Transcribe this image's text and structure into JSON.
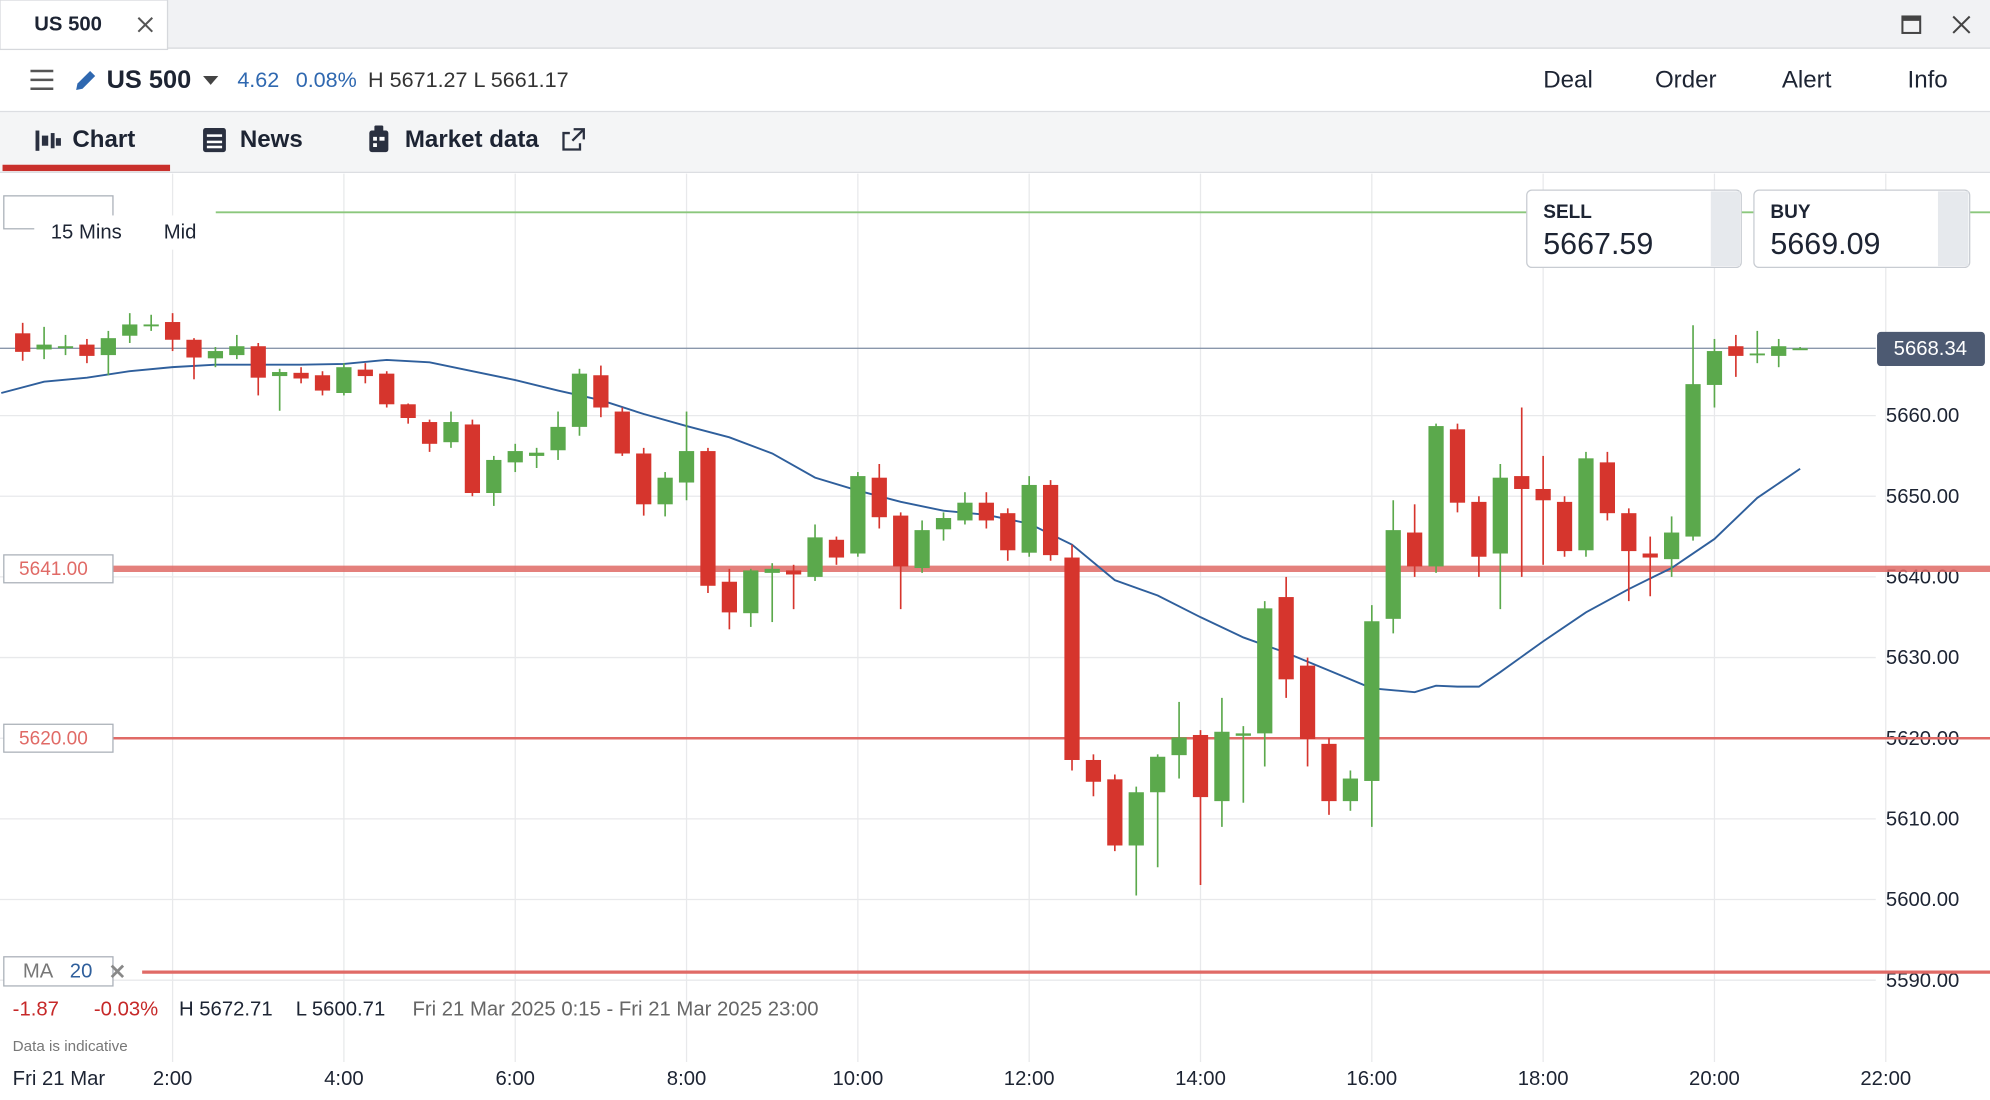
{
  "tab": {
    "title": "US 500"
  },
  "toolbar": {
    "instrument": "US 500",
    "change": "4.62",
    "change_pct": "0.08%",
    "high_low": "H 5671.27 L 5661.17",
    "actions": [
      "Deal",
      "Order",
      "Alert",
      "Info"
    ]
  },
  "subtabs": [
    "Chart",
    "News",
    "Market data"
  ],
  "quote": {
    "sell_label": "SELL",
    "sell_price": "5667.59",
    "buy_label": "BUY",
    "buy_price": "5669.09"
  },
  "settings": {
    "interval": "15 Mins",
    "price_type": "Mid"
  },
  "footer": {
    "change": "-1.87",
    "change_pct": "-0.03%",
    "high": "H 5672.71",
    "low": "L 5600.71",
    "range": "Fri 21 Mar 2025 0:15 - Fri 21 Mar 2025 23:00",
    "note": "Data is indicative",
    "date": "Fri 21 Mar"
  },
  "chart_data": {
    "type": "candlestick",
    "up_color": "#5ba94c",
    "down_color": "#d6352d",
    "xlim": [
      "0:00",
      "23:13"
    ],
    "ylim": [
      5587.4,
      5690
    ],
    "xticks": [
      "2:00",
      "4:00",
      "6:00",
      "8:00",
      "10:00",
      "12:00",
      "14:00",
      "16:00",
      "18:00",
      "20:00",
      "22:00"
    ],
    "yticks": [
      {
        "value": 5590,
        "label": "5590.00"
      },
      {
        "value": 5600,
        "label": "5600.00"
      },
      {
        "value": 5610,
        "label": "5610.00"
      },
      {
        "value": 5620,
        "label": "5620.00"
      },
      {
        "value": 5630,
        "label": "5630.00"
      },
      {
        "value": 5640,
        "label": "5640.00"
      },
      {
        "value": 5650,
        "label": "5650.00"
      },
      {
        "value": 5660,
        "label": "5660.00"
      }
    ],
    "grid": true,
    "current_price": 5668.34,
    "levels": [
      {
        "value": 5641,
        "label": "5641.00",
        "color": "#e06a66"
      },
      {
        "value": 5620,
        "label": "5620.00",
        "color": "#e06a66"
      },
      {
        "value": 5685.2,
        "color": "#8bc77c"
      },
      {
        "value": 5591,
        "color": "#e06a66"
      }
    ],
    "candles": {
      "x": [
        "0:15",
        "0:30",
        "0:45",
        "1:00",
        "1:15",
        "1:30",
        "1:45",
        "2:00",
        "2:15",
        "2:30",
        "2:45",
        "3:00",
        "3:15",
        "3:30",
        "3:45",
        "4:00",
        "4:15",
        "4:30",
        "4:45",
        "5:00",
        "5:15",
        "5:30",
        "5:45",
        "6:00",
        "6:15",
        "6:30",
        "6:45",
        "7:00",
        "7:15",
        "7:30",
        "7:45",
        "8:00",
        "8:15",
        "8:30",
        "8:45",
        "9:00",
        "9:15",
        "9:30",
        "9:45",
        "10:00",
        "10:15",
        "10:30",
        "10:45",
        "11:00",
        "11:15",
        "11:30",
        "11:45",
        "12:00",
        "12:15",
        "12:30",
        "12:45",
        "13:00",
        "13:15",
        "13:30",
        "13:45",
        "14:00",
        "14:15",
        "14:30",
        "14:45",
        "15:00",
        "15:15",
        "15:30",
        "15:45",
        "16:00",
        "16:15",
        "16:30",
        "16:45",
        "17:00",
        "17:15",
        "17:30",
        "17:45",
        "18:00",
        "18:15",
        "18:30",
        "18:45",
        "19:00",
        "19:15",
        "19:30",
        "19:45",
        "20:00",
        "20:15",
        "20:30",
        "20:45",
        "21:00"
      ],
      "open": [
        5670.2,
        5668.2,
        5668.5,
        5668.8,
        5667.5,
        5669.9,
        5671.1,
        5671.6,
        5669.4,
        5667.1,
        5667.5,
        5668.6,
        5664.9,
        5665.3,
        5665.0,
        5662.8,
        5665.7,
        5665.2,
        5661.4,
        5659.2,
        5656.7,
        5658.9,
        5650.4,
        5654.2,
        5655.0,
        5655.7,
        5658.6,
        5665.0,
        5660.5,
        5655.3,
        5649.0,
        5651.7,
        5655.6,
        5639.4,
        5635.5,
        5640.5,
        5640.8,
        5640.0,
        5644.6,
        5642.9,
        5652.3,
        5647.6,
        5641.1,
        5645.9,
        5647.0,
        5649.2,
        5647.9,
        5643.0,
        5651.4,
        5642.4,
        5617.3,
        5614.9,
        5606.7,
        5613.3,
        5617.9,
        5620.4,
        5612.2,
        5620.3,
        5620.6,
        5637.5,
        5629.0,
        5619.3,
        5612.2,
        5614.7,
        5634.8,
        5645.5,
        5641.3,
        5658.3,
        5649.3,
        5642.9,
        5652.5,
        5650.9,
        5649.3,
        5643.3,
        5654.2,
        5647.9,
        5642.9,
        5642.2,
        5645.0,
        5663.8,
        5668.6,
        5667.7,
        5667.4,
        5668.3
      ],
      "high": [
        5671.5,
        5671.0,
        5670.0,
        5669.5,
        5670.5,
        5672.7,
        5672.5,
        5672.7,
        5669.6,
        5668.5,
        5670.0,
        5669.0,
        5665.8,
        5666.0,
        5665.5,
        5666.5,
        5666.5,
        5665.5,
        5661.5,
        5659.5,
        5660.5,
        5659.5,
        5655.0,
        5656.5,
        5656.0,
        5660.5,
        5665.8,
        5666.2,
        5661.0,
        5656.0,
        5653.0,
        5660.5,
        5656.0,
        5641.0,
        5641.0,
        5641.7,
        5641.5,
        5646.5,
        5645.0,
        5653.0,
        5654.0,
        5648.0,
        5647.0,
        5648.0,
        5650.5,
        5650.5,
        5648.5,
        5652.5,
        5652.0,
        5644.0,
        5618.0,
        5615.5,
        5614.0,
        5618.0,
        5624.5,
        5621.0,
        5625.0,
        5621.5,
        5637.0,
        5640.0,
        5630.0,
        5620.0,
        5616.0,
        5636.5,
        5649.5,
        5649.0,
        5659.0,
        5659.0,
        5650.0,
        5654.0,
        5661.0,
        5655.0,
        5650.0,
        5655.5,
        5655.5,
        5648.5,
        5645.0,
        5647.5,
        5671.2,
        5669.5,
        5670.0,
        5670.5,
        5669.5,
        5668.5
      ],
      "low": [
        5666.8,
        5667.0,
        5667.5,
        5666.5,
        5665.0,
        5669.0,
        5670.5,
        5668.0,
        5664.5,
        5666.0,
        5667.0,
        5662.5,
        5660.6,
        5664.0,
        5662.5,
        5662.5,
        5664.0,
        5661.0,
        5659.0,
        5655.5,
        5656.0,
        5650.0,
        5648.8,
        5653.0,
        5653.5,
        5654.5,
        5657.5,
        5659.8,
        5655.0,
        5647.6,
        5647.5,
        5649.5,
        5638.0,
        5633.5,
        5633.8,
        5634.4,
        5636.0,
        5639.5,
        5641.5,
        5642.5,
        5646.0,
        5636.0,
        5640.5,
        5644.5,
        5646.5,
        5646.0,
        5642.0,
        5642.5,
        5642.0,
        5616.0,
        5612.8,
        5606.0,
        5600.5,
        5604.0,
        5615.0,
        5601.8,
        5609.0,
        5612.0,
        5616.5,
        5625.0,
        5616.5,
        5610.5,
        5611.0,
        5609.0,
        5633.0,
        5640.0,
        5640.5,
        5648.0,
        5640.0,
        5636.0,
        5640.0,
        5641.5,
        5642.5,
        5642.5,
        5647.0,
        5637.0,
        5637.6,
        5640.0,
        5644.5,
        5661.0,
        5664.8,
        5666.5,
        5666.0,
        5668.2
      ],
      "close": [
        5667.9,
        5668.8,
        5668.6,
        5667.4,
        5669.6,
        5671.3,
        5671.3,
        5669.4,
        5667.2,
        5668.0,
        5668.6,
        5664.7,
        5665.4,
        5664.6,
        5663.1,
        5666.0,
        5664.9,
        5661.4,
        5659.7,
        5656.5,
        5659.2,
        5650.4,
        5654.5,
        5655.6,
        5655.4,
        5658.6,
        5665.2,
        5661.0,
        5655.3,
        5649.0,
        5652.3,
        5655.6,
        5638.9,
        5635.6,
        5640.8,
        5641.0,
        5640.3,
        5644.9,
        5642.4,
        5652.5,
        5647.4,
        5641.3,
        5645.8,
        5647.3,
        5649.2,
        5647.0,
        5643.3,
        5651.4,
        5642.7,
        5617.3,
        5614.6,
        5606.7,
        5613.3,
        5617.7,
        5620.1,
        5612.7,
        5620.8,
        5620.6,
        5636.1,
        5627.3,
        5619.9,
        5612.2,
        5615.0,
        5634.5,
        5645.8,
        5641.3,
        5658.7,
        5649.2,
        5642.5,
        5652.3,
        5650.9,
        5649.5,
        5643.2,
        5654.7,
        5647.9,
        5643.2,
        5642.4,
        5645.5,
        5663.9,
        5668.0,
        5667.4,
        5667.7,
        5668.6,
        5668.34
      ]
    },
    "ma_line": {
      "name": "MA",
      "period": 20,
      "color": "#2f5f9c",
      "x": [
        "0:00",
        "0:30",
        "1:00",
        "1:30",
        "2:00",
        "2:30",
        "3:00",
        "3:30",
        "4:00",
        "4:30",
        "5:00",
        "5:30",
        "6:00",
        "6:30",
        "7:00",
        "7:30",
        "8:00",
        "8:30",
        "9:00",
        "9:30",
        "10:00",
        "10:30",
        "11:00",
        "11:30",
        "12:00",
        "12:30",
        "13:00",
        "13:30",
        "14:00",
        "14:30",
        "15:00",
        "15:30",
        "16:00",
        "16:30",
        "16:45",
        "17:00",
        "17:15",
        "17:30",
        "18:00",
        "18:30",
        "19:00",
        "19:30",
        "20:00",
        "20:30",
        "21:00"
      ],
      "values": [
        5662.8,
        5664.2,
        5664.7,
        5665.5,
        5666.0,
        5666.3,
        5666.3,
        5666.3,
        5666.4,
        5666.9,
        5666.6,
        5665.5,
        5664.4,
        5663.1,
        5661.9,
        5660.2,
        5658.7,
        5657.3,
        5655.3,
        5652.3,
        5650.7,
        5649.3,
        5648.2,
        5647.7,
        5646.6,
        5644.0,
        5639.6,
        5637.7,
        5635.0,
        5632.5,
        5630.6,
        5628.4,
        5626.2,
        5625.7,
        5626.5,
        5626.4,
        5626.4,
        5628.2,
        5632.0,
        5635.6,
        5638.5,
        5641.1,
        5644.7,
        5649.8,
        5653.4
      ]
    }
  }
}
